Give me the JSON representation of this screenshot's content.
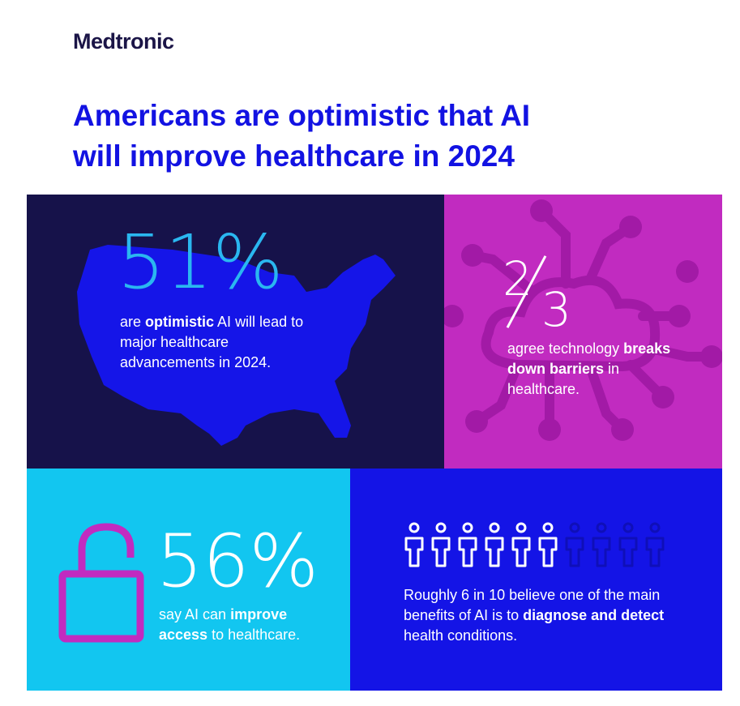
{
  "brand": {
    "logo": "Medtronic"
  },
  "title": {
    "line1": "Americans are optimistic that AI",
    "line2": "will improve healthcare in 2024"
  },
  "stats": [
    {
      "value": "51%",
      "pre": "are ",
      "bold": "optimistic",
      "post": " AI will lead to major healthcare advancements in 2024.",
      "icon": "usa-map-icon"
    },
    {
      "value": "2/3",
      "numerator": "2",
      "denominator": "3",
      "pre": "agree technology ",
      "bold": "breaks down barriers",
      "post": " in healthcare.",
      "icon": "circuit-cloud-icon"
    },
    {
      "value": "56%",
      "pre": "say AI can ",
      "bold": "improve access",
      "post": " to healthcare.",
      "icon": "unlocked-padlock-icon"
    },
    {
      "value": "6 in 10",
      "filled": 6,
      "total": 10,
      "pre": "Roughly 6 in 10 believe one of the main benefits of AI is to ",
      "bold": "diagnose and detect",
      "post": " health conditions.",
      "icon": "person-icon"
    }
  ],
  "colors": {
    "navy": "#16124a",
    "magenta": "#c12bc0",
    "cyan": "#12c6f0",
    "blue": "#1414e6",
    "title_blue": "#1212e2"
  }
}
